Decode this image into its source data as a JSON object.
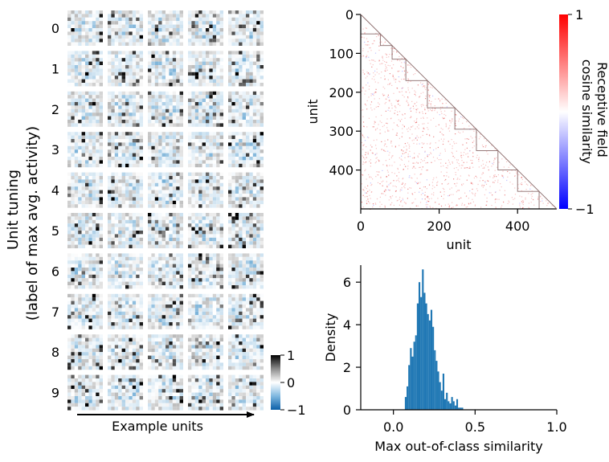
{
  "chart_data": [
    {
      "type": "heatmap",
      "title": "",
      "ylabel": "Unit tuning",
      "ylabel_sub": "(label of max avg. activity)",
      "xlabel": "Example units",
      "row_labels": [
        "0",
        "1",
        "2",
        "3",
        "4",
        "5",
        "6",
        "7",
        "8",
        "9"
      ],
      "columns_per_row": 5,
      "colorbar": {
        "ticks": [
          "1",
          "0",
          "−1"
        ],
        "vmin": -1,
        "vmax": 1,
        "colors": [
          "#1f77b4",
          "#ffffff",
          "#000000"
        ]
      }
    },
    {
      "type": "heatmap",
      "xlabel": "unit",
      "ylabel": "unit",
      "xlim": [
        0,
        500
      ],
      "ylim": [
        0,
        500
      ],
      "x_ticks": [
        "0",
        "200",
        "400"
      ],
      "y_ticks": [
        "0",
        "100",
        "200",
        "300",
        "400"
      ],
      "class_block_edges": [
        0,
        50,
        80,
        115,
        170,
        240,
        295,
        350,
        400,
        455,
        500
      ],
      "colorbar": {
        "label": "Receptive field\ncosine similarity",
        "ticks": [
          "1",
          "−1"
        ],
        "vmin": -1,
        "vmax": 1,
        "colors": [
          "#0000ff",
          "#ffffff",
          "#ff0000"
        ]
      }
    },
    {
      "type": "bar",
      "xlabel": "Max out-of-class similarity",
      "ylabel": "Density",
      "xlim": [
        -0.2,
        1.0
      ],
      "ylim": [
        0,
        6.8
      ],
      "x_ticks": [
        "0.0",
        "0.5",
        "1.0"
      ],
      "y_ticks": [
        "0",
        "2",
        "4",
        "6"
      ],
      "color": "#1f77b4",
      "bin_start": 0.07,
      "bin_width": 0.0105,
      "values": [
        0.6,
        1.1,
        2.1,
        2.9,
        2.5,
        3.2,
        3.5,
        5.0,
        6.0,
        5.3,
        6.6,
        5.5,
        5.0,
        4.5,
        4.2,
        4.7,
        3.9,
        2.8,
        2.3,
        1.8,
        1.3,
        0.9,
        1.7,
        0.5,
        0.8,
        0.4,
        0.3,
        0.6,
        0.4,
        0.2,
        0.5,
        0.1,
        0.1,
        0.1
      ]
    }
  ]
}
